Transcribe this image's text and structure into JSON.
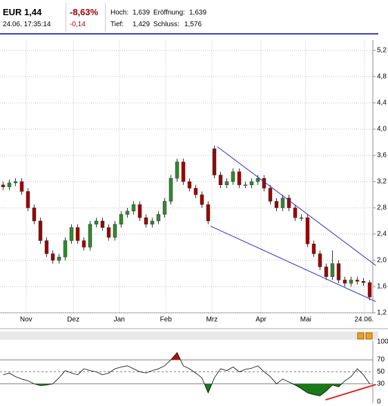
{
  "header": {
    "symbol": "EUR 1,44",
    "timestamp": "24.06. 17:35:14",
    "change_pct": "-8,63%",
    "change_abs": "-0,14",
    "high_label": "Hoch:",
    "high": "1,639",
    "open_label": "Eröffnung:",
    "open": "1,639",
    "low_label": "Tief:",
    "low": "1,429",
    "close_label": "Schluss:",
    "close": "1,576"
  },
  "chart_data": [
    {
      "type": "candlestick",
      "x": [
        0,
        1,
        2,
        3,
        4,
        5,
        6,
        7,
        8,
        9,
        10,
        11,
        12,
        13,
        14,
        15,
        16,
        17,
        18,
        19,
        20,
        21,
        22,
        23,
        24,
        25,
        26,
        27,
        28,
        29,
        30,
        31,
        32,
        33,
        34,
        35,
        36,
        37,
        38,
        39,
        40,
        41,
        42,
        43,
        44,
        45,
        46,
        47,
        48,
        49,
        50,
        51,
        52,
        53,
        54,
        55,
        56,
        57,
        58,
        59
      ],
      "open": [
        3.15,
        3.12,
        3.18,
        3.2,
        3.05,
        2.8,
        2.6,
        2.3,
        2.1,
        2.0,
        2.05,
        2.3,
        2.5,
        2.3,
        2.2,
        2.55,
        2.6,
        2.5,
        2.35,
        2.55,
        2.7,
        2.75,
        2.85,
        2.65,
        2.55,
        2.6,
        2.7,
        2.9,
        3.25,
        3.5,
        3.2,
        3.1,
        3.0,
        2.85,
        3.7,
        3.3,
        3.15,
        3.2,
        3.35,
        3.15,
        3.15,
        3.2,
        3.25,
        3.1,
        2.9,
        2.8,
        2.95,
        2.8,
        2.65,
        2.65,
        2.25,
        2.1,
        1.9,
        1.75,
        1.95,
        1.7,
        1.65,
        1.7,
        1.68,
        1.66
      ],
      "high": [
        3.2,
        3.23,
        3.25,
        3.25,
        3.1,
        2.85,
        2.65,
        2.35,
        2.15,
        2.1,
        2.35,
        2.55,
        2.55,
        2.35,
        2.6,
        2.65,
        2.65,
        2.55,
        2.6,
        2.75,
        2.8,
        2.9,
        2.9,
        2.7,
        2.65,
        2.75,
        2.95,
        3.3,
        3.55,
        3.55,
        3.25,
        3.15,
        3.05,
        2.9,
        3.75,
        3.35,
        3.25,
        3.4,
        3.4,
        3.2,
        3.25,
        3.3,
        3.3,
        3.15,
        2.95,
        3.0,
        3.0,
        2.85,
        2.7,
        2.7,
        2.3,
        2.15,
        1.95,
        2.15,
        2.0,
        1.75,
        1.75,
        1.75,
        1.73,
        1.7
      ],
      "low": [
        3.07,
        3.07,
        3.13,
        3.0,
        2.75,
        2.55,
        2.25,
        2.05,
        1.95,
        1.95,
        2.0,
        2.25,
        2.25,
        2.15,
        2.15,
        2.5,
        2.45,
        2.3,
        2.3,
        2.5,
        2.65,
        2.7,
        2.6,
        2.5,
        2.5,
        2.55,
        2.65,
        2.85,
        3.2,
        3.15,
        3.05,
        2.95,
        2.8,
        2.55,
        3.25,
        3.1,
        3.1,
        3.15,
        3.1,
        3.1,
        3.1,
        3.15,
        3.05,
        2.85,
        2.75,
        2.75,
        2.75,
        2.6,
        2.6,
        2.2,
        2.05,
        1.85,
        1.7,
        1.7,
        1.65,
        1.6,
        1.6,
        1.63,
        1.61,
        1.39
      ],
      "close": [
        3.12,
        3.18,
        3.2,
        3.05,
        2.8,
        2.6,
        2.3,
        2.1,
        2.0,
        2.05,
        2.3,
        2.5,
        2.3,
        2.2,
        2.55,
        2.6,
        2.5,
        2.35,
        2.55,
        2.7,
        2.75,
        2.85,
        2.65,
        2.55,
        2.6,
        2.7,
        2.9,
        3.25,
        3.5,
        3.2,
        3.1,
        3.0,
        2.85,
        2.6,
        3.3,
        3.15,
        3.2,
        3.35,
        3.15,
        3.15,
        3.2,
        3.25,
        3.1,
        2.9,
        2.8,
        2.95,
        2.8,
        2.65,
        2.65,
        2.25,
        2.1,
        1.9,
        1.75,
        1.95,
        1.7,
        1.65,
        1.7,
        1.68,
        1.66,
        1.44
      ],
      "up_color": "#2e8b2e",
      "down_color": "#a00000",
      "xlim": [
        -0.5,
        59.5
      ],
      "ylim": [
        1.2,
        5.35
      ],
      "yticks": [
        {
          "value": 1.2,
          "label": "1,2"
        },
        {
          "value": 1.6,
          "label": "1,6"
        },
        {
          "value": 2.0,
          "label": "2,0"
        },
        {
          "value": 2.4,
          "label": "2,4"
        },
        {
          "value": 2.8,
          "label": "2,8"
        },
        {
          "value": 3.2,
          "label": "3,2"
        },
        {
          "value": 3.6,
          "label": "3,6"
        },
        {
          "value": 4.0,
          "label": "4,0"
        },
        {
          "value": 4.4,
          "label": "4,4"
        },
        {
          "value": 4.8,
          "label": "4,8"
        },
        {
          "value": 5.2,
          "label": "5,2"
        }
      ],
      "xticks": [
        {
          "value": 3.7,
          "label": "Nov"
        },
        {
          "value": 11.3,
          "label": "Dez"
        },
        {
          "value": 18.7,
          "label": "Jan"
        },
        {
          "value": 26.2,
          "label": "Feb"
        },
        {
          "value": 33.6,
          "label": "Mrz"
        },
        {
          "value": 41.5,
          "label": "Apr"
        },
        {
          "value": 48.7,
          "label": "Mai"
        },
        {
          "value": 58.1,
          "label": "24.06."
        }
      ],
      "grid": true,
      "trendline_color": "#2a2ac8",
      "trendlines": [
        {
          "x": [
            34.5,
            60
          ],
          "y": [
            3.73,
            1.92
          ]
        },
        {
          "x": [
            33.4,
            60
          ],
          "y": [
            2.52,
            1.37
          ]
        }
      ]
    },
    {
      "type": "line",
      "x": [
        0,
        1,
        2,
        3,
        4,
        5,
        6,
        7,
        8,
        9,
        10,
        11,
        12,
        13,
        14,
        15,
        16,
        17,
        18,
        19,
        20,
        21,
        22,
        23,
        24,
        25,
        26,
        27,
        28,
        29,
        30,
        31,
        32,
        33,
        34,
        35,
        36,
        37,
        38,
        39,
        40,
        41,
        42,
        43,
        44,
        45,
        46,
        47,
        48,
        49,
        50,
        51,
        52,
        53,
        54,
        55,
        56,
        57,
        58,
        59
      ],
      "values": [
        45,
        48,
        42,
        38,
        35,
        30,
        27,
        28,
        30,
        40,
        52,
        48,
        45,
        55,
        52,
        50,
        45,
        48,
        55,
        58,
        60,
        55,
        50,
        48,
        52,
        55,
        60,
        70,
        82,
        60,
        55,
        48,
        40,
        15,
        40,
        55,
        52,
        58,
        50,
        54,
        56,
        60,
        50,
        42,
        30,
        38,
        33,
        28,
        22,
        15,
        12,
        10,
        18,
        28,
        25,
        35,
        42,
        55,
        45,
        30
      ],
      "color": "#000000",
      "low_fill": "#1a7a1a",
      "high_fill": "#b01010",
      "low_level": 30,
      "high_level": 70,
      "xlim": [
        -0.5,
        59.5
      ],
      "ylim": [
        0,
        100
      ],
      "yticks": [
        0,
        30,
        50,
        70,
        100
      ],
      "trendline_color": "#e02020",
      "trendlines": [
        {
          "x": [
            51.9,
            60
          ],
          "y": [
            3.4,
            29
          ]
        }
      ]
    }
  ]
}
